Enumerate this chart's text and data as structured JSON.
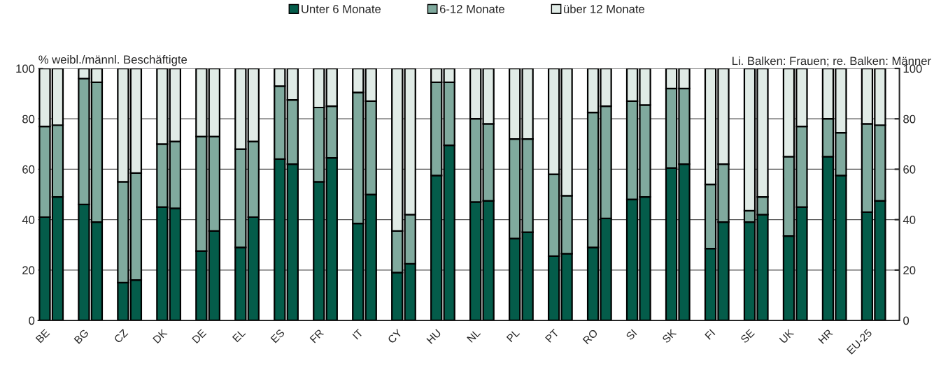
{
  "chart_data": {
    "type": "bar",
    "stacked": true,
    "ylabel": "% weibl./männl. Beschäftigte",
    "annotations": [
      "Li. Balken: Frauen; re. Balken: Männer"
    ],
    "categories": [
      "BE",
      null,
      "BG",
      null,
      "CZ",
      null,
      "DK",
      null,
      "DE",
      null,
      "EL",
      null,
      "ES",
      null,
      "FR",
      null,
      "IT",
      null,
      "CY",
      null,
      "HU",
      null,
      "NL",
      null,
      "PL",
      null,
      "PT",
      null,
      "RO",
      null,
      "SI",
      null,
      "SK",
      null,
      "FI",
      null,
      "SE",
      null,
      "UK",
      null,
      "HR",
      null,
      "EU-25",
      null
    ],
    "series": [
      {
        "name": "Unter 6 Monate",
        "color": "#045c4a",
        "values": [
          41,
          49,
          46,
          39,
          15,
          16,
          45,
          44.5,
          27.5,
          35.5,
          29,
          41,
          64,
          62,
          55,
          64.5,
          38.5,
          50,
          19,
          22.5,
          57.5,
          69.5,
          47,
          47.5,
          32.5,
          35,
          25.5,
          26.5,
          29,
          40.5,
          48,
          49,
          60.5,
          62,
          28.5,
          39,
          39,
          42,
          33.5,
          45,
          65,
          57.5,
          43,
          47.5
        ]
      },
      {
        "name": "6-12 Monate",
        "color": "#80aa9e",
        "values": [
          36,
          28.5,
          50,
          55.5,
          40,
          42.5,
          25,
          26.5,
          45.5,
          37.5,
          39,
          30,
          29,
          25.5,
          29.5,
          20.5,
          52,
          37,
          16.5,
          19.5,
          37,
          25,
          33,
          30.5,
          39.5,
          37,
          32.5,
          23,
          53.5,
          44.5,
          39,
          36.5,
          31.5,
          30,
          25.5,
          23,
          4.5,
          7,
          31.5,
          32,
          15,
          17,
          35,
          30
        ]
      },
      {
        "name": "über 12 Monate",
        "color": "#e0ebe6",
        "values": [
          23,
          22.5,
          4,
          5.5,
          45,
          41.5,
          30,
          29,
          27,
          27,
          32,
          29,
          7,
          12.5,
          15.5,
          15,
          9.5,
          13,
          64.5,
          58,
          5.5,
          5.5,
          20,
          22,
          28,
          28,
          42,
          50.5,
          17.5,
          15,
          13,
          14.5,
          8,
          8,
          46,
          38,
          56.5,
          51,
          35,
          23,
          20,
          25.5,
          22,
          22.5
        ]
      }
    ],
    "ylim": [
      0,
      100
    ],
    "yticks": [
      0,
      20,
      40,
      60,
      80,
      100
    ],
    "y2lim": [
      0,
      100
    ],
    "y2ticks": [
      0,
      20,
      40,
      60,
      80,
      100
    ],
    "grid": "y",
    "legend": "top"
  }
}
